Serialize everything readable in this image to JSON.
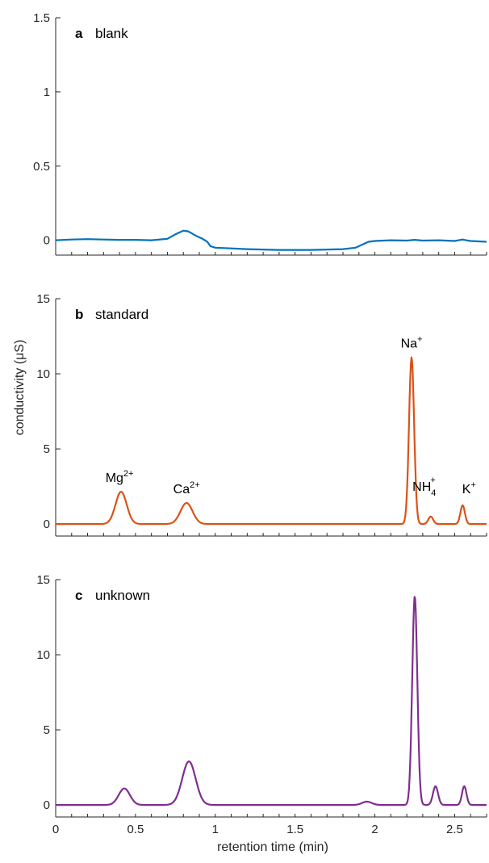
{
  "chart_data": [
    {
      "type": "line",
      "panel_letter": "a",
      "panel_name": "blank",
      "xlim": [
        0,
        2.7
      ],
      "ylim": [
        -0.1,
        1.5
      ],
      "yticks": [
        0,
        0.5,
        1,
        1.5
      ],
      "ytick_labels": [
        "0",
        "0.5",
        "1",
        "1.5"
      ],
      "color": "#0072BD",
      "series": [
        {
          "x": [
            0,
            0.1,
            0.2,
            0.3,
            0.4,
            0.5,
            0.6,
            0.7,
            0.75,
            0.8,
            0.83,
            0.88,
            0.92,
            0.95,
            0.97,
            1.0,
            1.1,
            1.2,
            1.4,
            1.6,
            1.8,
            1.88,
            1.92,
            1.96,
            2.0,
            2.1,
            2.2,
            2.25,
            2.3,
            2.4,
            2.5,
            2.55,
            2.57,
            2.6,
            2.7
          ],
          "y": [
            0.0,
            0.005,
            0.008,
            0.005,
            0.003,
            0.003,
            0.0,
            0.01,
            0.04,
            0.065,
            0.06,
            0.03,
            0.01,
            -0.01,
            -0.04,
            -0.05,
            -0.055,
            -0.06,
            -0.065,
            -0.065,
            -0.06,
            -0.05,
            -0.03,
            -0.01,
            -0.005,
            0.0,
            -0.002,
            0.003,
            -0.002,
            0.0,
            -0.005,
            0.005,
            0.0,
            -0.005,
            -0.01
          ]
        }
      ]
    },
    {
      "type": "line",
      "panel_letter": "b",
      "panel_name": "standard",
      "xlim": [
        0,
        2.7
      ],
      "ylim": [
        -0.8,
        15
      ],
      "yticks": [
        0,
        5,
        10,
        15
      ],
      "ytick_labels": [
        "0",
        "5",
        "10",
        "15"
      ],
      "color": "#D95319",
      "peaks": [
        {
          "label": "Mg",
          "sup": "2+",
          "sub": "",
          "x": 0.41,
          "height": 2.15
        },
        {
          "label": "Ca",
          "sup": "2+",
          "sub": "",
          "x": 0.82,
          "height": 1.4
        },
        {
          "label": "Na",
          "sup": "+",
          "sub": "",
          "x": 2.23,
          "height": 11.1
        },
        {
          "label": "NH",
          "sup": "+",
          "sub": "4",
          "x": 2.35,
          "height": 0.5
        },
        {
          "label": "K",
          "sup": "+",
          "sub": "",
          "x": 2.55,
          "height": 1.25
        }
      ],
      "series": [
        {
          "gaussians": [
            {
              "center": 0.41,
              "height": 2.15,
              "sigma": 0.035
            },
            {
              "center": 0.82,
              "height": 1.4,
              "sigma": 0.038
            },
            {
              "center": 2.23,
              "height": 11.1,
              "sigma": 0.016
            },
            {
              "center": 2.35,
              "height": 0.5,
              "sigma": 0.015
            },
            {
              "center": 2.55,
              "height": 1.25,
              "sigma": 0.014
            }
          ],
          "baseline": 0.0
        }
      ]
    },
    {
      "type": "line",
      "panel_letter": "c",
      "panel_name": "unknown",
      "xlim": [
        0,
        2.7
      ],
      "ylim": [
        -0.8,
        15
      ],
      "yticks": [
        0,
        5,
        10,
        15
      ],
      "ytick_labels": [
        "0",
        "5",
        "10",
        "15"
      ],
      "xticks": [
        0,
        0.5,
        1,
        1.5,
        2,
        2.5
      ],
      "xtick_labels": [
        "0",
        "0.5",
        "1",
        "1.5",
        "2",
        "2.5"
      ],
      "xlabel": "retention time (min)",
      "color": "#7E2F8E",
      "series": [
        {
          "gaussians": [
            {
              "center": 0.43,
              "height": 1.1,
              "sigma": 0.035
            },
            {
              "center": 0.835,
              "height": 2.9,
              "sigma": 0.042
            },
            {
              "center": 1.95,
              "height": 0.22,
              "sigma": 0.03
            },
            {
              "center": 2.25,
              "height": 13.9,
              "sigma": 0.016
            },
            {
              "center": 2.38,
              "height": 1.25,
              "sigma": 0.016
            },
            {
              "center": 2.56,
              "height": 1.25,
              "sigma": 0.014
            }
          ],
          "baseline": 0.0
        }
      ]
    }
  ],
  "shared": {
    "ylabel": "conductivity (μS)"
  }
}
